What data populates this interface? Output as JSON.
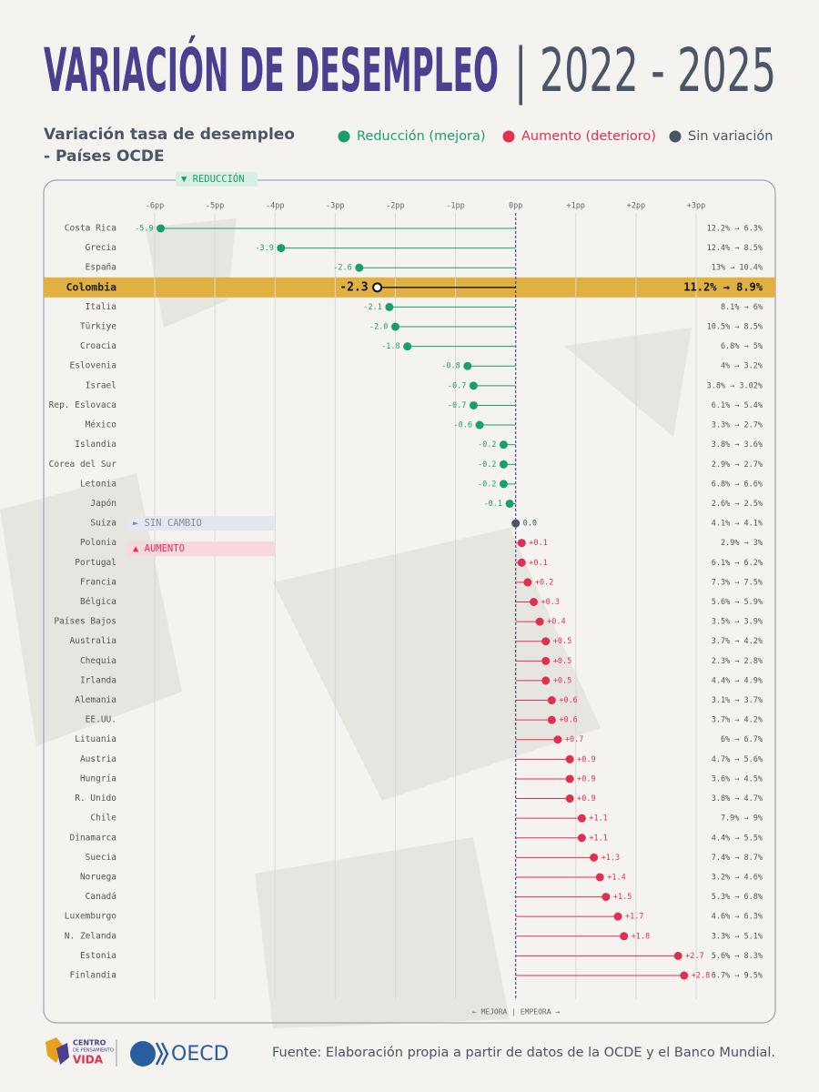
{
  "chart_data": {
    "type": "lollipop",
    "title": "VARIACIÓN DE DESEMPLEO",
    "title_period": "| 2022 - 2025",
    "subtitle": [
      "Variación tasa de desempleo",
      "- Países OCDE"
    ],
    "legend": [
      {
        "name": "Reducción (mejora)",
        "color": "#1a9e6e"
      },
      {
        "name": "Aumento (deterioro)",
        "color": "#e03050"
      },
      {
        "name": "Sin variación",
        "color": "#4a5568"
      }
    ],
    "highlight": "Colombia",
    "highlight_color": "#e0b040",
    "categories": [
      "Costa Rica",
      "Grecia",
      "España",
      "Colombia",
      "Italia",
      "Türkiye",
      "Croacia",
      "Eslovenia",
      "Israel",
      "Rep. Eslovaca",
      "México",
      "Islandia",
      "Corea del Sur",
      "Letonia",
      "Japón",
      "Suiza",
      "Polonia",
      "Portugal",
      "Francia",
      "Bélgica",
      "Países Bajos",
      "Australia",
      "Chequia",
      "Irlanda",
      "Alemania",
      "EE.UU.",
      "Lituania",
      "Austria",
      "Hungría",
      "R. Unido",
      "Chile",
      "Dinamarca",
      "Suecia",
      "Noruega",
      "Canadá",
      "Luxemburgo",
      "N. Zelanda",
      "Estonia",
      "Finlandia"
    ],
    "values": [
      -5.9,
      -3.9,
      -2.6,
      -2.3,
      -2.1,
      -2.0,
      -1.8,
      -0.8,
      -0.7,
      -0.7,
      -0.6,
      -0.2,
      -0.2,
      -0.2,
      -0.1,
      0.0,
      0.1,
      0.1,
      0.2,
      0.3,
      0.4,
      0.5,
      0.5,
      0.5,
      0.6,
      0.6,
      0.7,
      0.9,
      0.9,
      0.9,
      1.1,
      1.1,
      1.3,
      1.4,
      1.5,
      1.7,
      1.8,
      2.7,
      2.8
    ],
    "value_labels": [
      "-5.9",
      "-3.9",
      "-2.6",
      "-2.3",
      "-2.1",
      "-2.0",
      "-1.8",
      "-0.8",
      "-0.7",
      "-0.7",
      "-0.6",
      "-0.2",
      "-0.2",
      "-0.2",
      "-0.1",
      "0.0",
      "+0.1",
      "+0.1",
      "+0.2",
      "+0.3",
      "+0.4",
      "+0.5",
      "+0.5",
      "+0.5",
      "+0.6",
      "+0.6",
      "+0.7",
      "+0.9",
      "+0.9",
      "+0.9",
      "+1.1",
      "+1.1",
      "+1.3",
      "+1.4",
      "+1.5",
      "+1.7",
      "+1.8",
      "+2.7",
      "+2.8"
    ],
    "ranges": [
      "12.2% → 6.3%",
      "12.4% → 8.5%",
      "13% → 10.4%",
      "11.2% → 8.9%",
      "8.1% → 6%",
      "10.5% → 8.5%",
      "6.8% → 5%",
      "4% → 3.2%",
      "3.8% → 3.02%",
      "6.1% → 5.4%",
      "3.3% → 2.7%",
      "3.8% → 3.6%",
      "2.9% → 2.7%",
      "6.8% → 6.6%",
      "2.6% → 2.5%",
      "4.1% → 4.1%",
      "2.9% → 3%",
      "6.1% → 6.2%",
      "7.3% → 7.5%",
      "5.6% → 5.9%",
      "3.5% → 3.9%",
      "3.7% → 4.2%",
      "2.3% → 2.8%",
      "4.4% → 4.9%",
      "3.1% → 3.7%",
      "3.7% → 4.2%",
      "6% → 6.7%",
      "4.7% → 5.6%",
      "3.6% → 4.5%",
      "3.8% → 4.7%",
      "7.9% → 9%",
      "4.4% → 5.5%",
      "7.4% → 8.7%",
      "3.2% → 4.6%",
      "5.3% → 6.8%",
      "4.6% → 6.3%",
      "3.3% → 5.1%",
      "5.6% → 8.3%",
      "6.7% → 9.5%"
    ],
    "xlim": [
      -6,
      3
    ],
    "xticks": [
      {
        "value": -6,
        "label": "-6pp"
      },
      {
        "value": -5,
        "label": "-5pp"
      },
      {
        "value": -4,
        "label": "-4pp"
      },
      {
        "value": -3,
        "label": "-3pp"
      },
      {
        "value": -2,
        "label": "-2pp"
      },
      {
        "value": -1,
        "label": "-1pp"
      },
      {
        "value": 0,
        "label": "0pp"
      },
      {
        "value": 1,
        "label": "+1pp"
      },
      {
        "value": 2,
        "label": "+2pp"
      },
      {
        "value": 3,
        "label": "+3pp"
      }
    ],
    "grid": true,
    "annotations": {
      "reduction": "▼ REDUCCIÓN",
      "no_change": "► SIN CAMBIO",
      "increase": "▲ AUMENTO",
      "direction": "← MEJORA | EMPEORA →"
    },
    "source": "Fuente: Elaboración propia a partir de datos de la OCDE y el Banco Mundial.",
    "logos": {
      "centro": [
        "CENTRO",
        "DE PENSAMIENTO",
        "VIDA"
      ],
      "oecd": "OECD"
    }
  }
}
